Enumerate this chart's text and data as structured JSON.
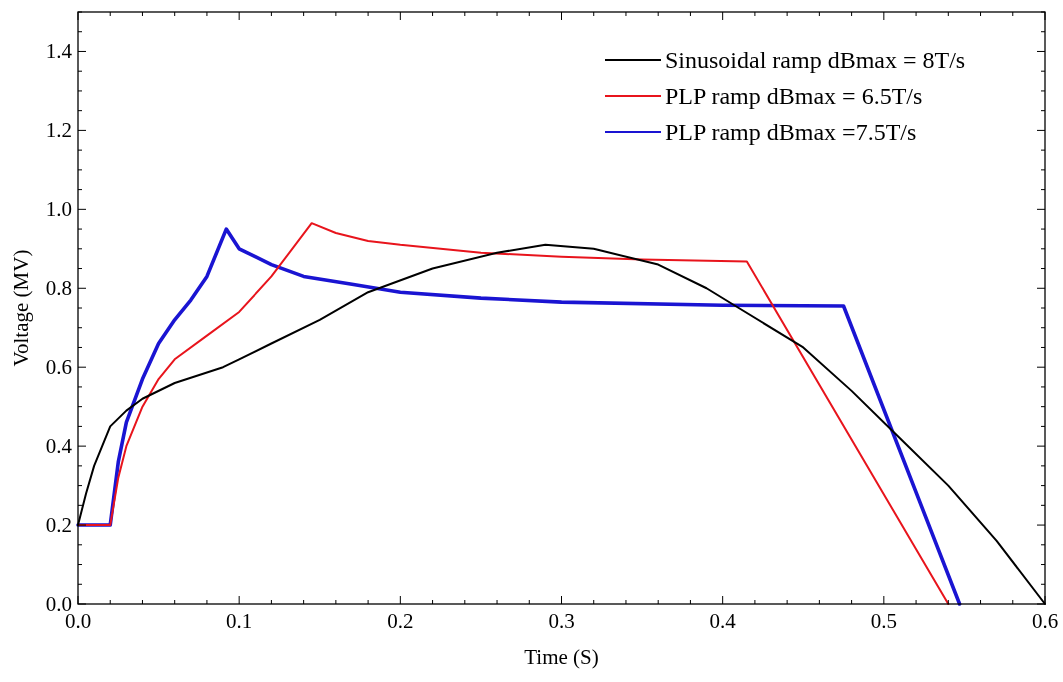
{
  "chart_data": {
    "type": "line",
    "xlabel": "Time  (S)",
    "ylabel": "Voltage  (MV)",
    "xlim": [
      0,
      0.6
    ],
    "ylim": [
      0,
      1.5
    ],
    "xticks": [
      {
        "value": 0,
        "label": "0.0"
      },
      {
        "value": 0.02,
        "label": null
      },
      {
        "value": 0.04,
        "label": null
      },
      {
        "value": 0.06,
        "label": null
      },
      {
        "value": 0.08,
        "label": null
      },
      0.1,
      {
        "value": 0.12,
        "label": null
      },
      {
        "value": 0.14,
        "label": null
      },
      {
        "value": 0.16,
        "label": null
      },
      {
        "value": 0.18,
        "label": null
      },
      0.2,
      {
        "value": 0.22,
        "label": null
      },
      {
        "value": 0.24,
        "label": null
      },
      {
        "value": 0.26,
        "label": null
      },
      {
        "value": 0.28,
        "label": null
      },
      0.3,
      {
        "value": 0.32,
        "label": null
      },
      {
        "value": 0.34,
        "label": null
      },
      {
        "value": 0.36,
        "label": null
      },
      {
        "value": 0.38,
        "label": null
      },
      0.4,
      {
        "value": 0.42,
        "label": null
      },
      {
        "value": 0.44,
        "label": null
      },
      {
        "value": 0.46,
        "label": null
      },
      {
        "value": 0.48,
        "label": null
      },
      0.5,
      {
        "value": 0.52,
        "label": null
      },
      {
        "value": 0.54,
        "label": null
      },
      {
        "value": 0.56,
        "label": null
      },
      {
        "value": 0.58,
        "label": null
      },
      0.6
    ],
    "yticks": [
      {
        "value": 0,
        "label": "0.0"
      },
      {
        "value": 0.05,
        "label": null
      },
      {
        "value": 0.1,
        "label": null
      },
      {
        "value": 0.15,
        "label": null
      },
      0.2,
      {
        "value": 0.25,
        "label": null
      },
      {
        "value": 0.3,
        "label": null
      },
      {
        "value": 0.35,
        "label": null
      },
      0.4,
      {
        "value": 0.45,
        "label": null
      },
      {
        "value": 0.5,
        "label": null
      },
      {
        "value": 0.55,
        "label": null
      },
      0.6,
      {
        "value": 0.65,
        "label": null
      },
      {
        "value": 0.7,
        "label": null
      },
      {
        "value": 0.75,
        "label": null
      },
      0.8,
      {
        "value": 0.85,
        "label": null
      },
      {
        "value": 0.9,
        "label": null
      },
      {
        "value": 0.95,
        "label": null
      },
      {
        "value": 1.0,
        "label": "1.0"
      },
      {
        "value": 1.05,
        "label": null
      },
      {
        "value": 1.1,
        "label": null
      },
      {
        "value": 1.15,
        "label": null
      },
      1.2,
      {
        "value": 1.25,
        "label": null
      },
      {
        "value": 1.3,
        "label": null
      },
      {
        "value": 1.35,
        "label": null
      },
      1.4,
      {
        "value": 1.45,
        "label": null
      },
      {
        "value": 1.5,
        "label": null
      }
    ],
    "grid": false,
    "legend": "top right",
    "line_style": "solid",
    "series": [
      {
        "name": "Sinusoidal ramp dBmax = 8T/s",
        "color": "#000000",
        "x": [
          0,
          0.005,
          0.01,
          0.02,
          0.03,
          0.04,
          0.06,
          0.09,
          0.1,
          0.12,
          0.15,
          0.18,
          0.22,
          0.26,
          0.29,
          0.32,
          0.36,
          0.39,
          0.41,
          0.45,
          0.48,
          0.51,
          0.54,
          0.57,
          0.6
        ],
        "values": [
          0.2,
          0.28,
          0.35,
          0.45,
          0.49,
          0.52,
          0.56,
          0.6,
          0.62,
          0.66,
          0.72,
          0.79,
          0.85,
          0.89,
          0.91,
          0.9,
          0.86,
          0.8,
          0.75,
          0.65,
          0.54,
          0.42,
          0.3,
          0.16,
          0
        ]
      },
      {
        "name": "PLP ramp dBmax = 6.5T/s",
        "color": "#e8141c",
        "x": [
          0,
          0.02,
          0.025,
          0.03,
          0.04,
          0.05,
          0.06,
          0.08,
          0.1,
          0.12,
          0.145,
          0.16,
          0.18,
          0.2,
          0.25,
          0.3,
          0.35,
          0.415,
          0.54
        ],
        "values": [
          0.2,
          0.2,
          0.32,
          0.4,
          0.5,
          0.57,
          0.62,
          0.68,
          0.74,
          0.83,
          0.965,
          0.94,
          0.92,
          0.91,
          0.89,
          0.88,
          0.873,
          0.868,
          0
        ]
      },
      {
        "name": "PLP ramp dBmax =7.5T/s",
        "color": "#1a14d2",
        "x": [
          0,
          0.02,
          0.025,
          0.03,
          0.04,
          0.05,
          0.06,
          0.07,
          0.08,
          0.092,
          0.1,
          0.12,
          0.14,
          0.17,
          0.2,
          0.25,
          0.3,
          0.4,
          0.475,
          0.547
        ],
        "values": [
          0.2,
          0.2,
          0.36,
          0.46,
          0.57,
          0.66,
          0.72,
          0.77,
          0.83,
          0.95,
          0.9,
          0.86,
          0.83,
          0.81,
          0.79,
          0.775,
          0.765,
          0.757,
          0.755,
          0
        ]
      }
    ]
  }
}
